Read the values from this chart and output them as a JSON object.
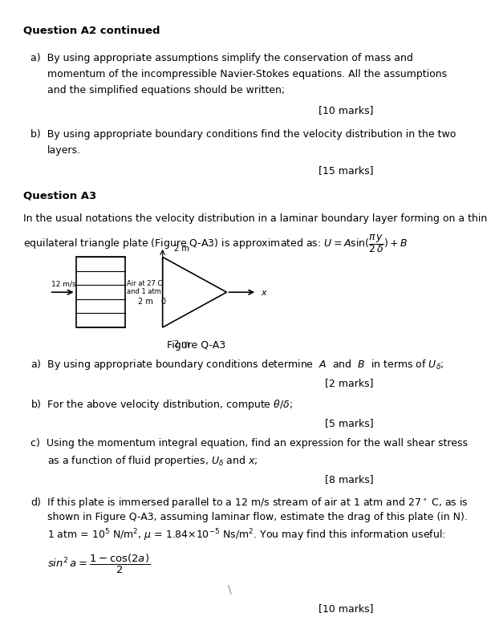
{
  "bg_color": "#ffffff",
  "fig_width": 6.01,
  "fig_height": 7.45,
  "title_bold": "Question A2 continued",
  "q_a2_a_text": "a)  By using appropriate assumptions simplify the conservation of mass and\n     momentum of the incompressible Navier-Stokes equations. All the assumptions\n     and the simplified equations should be written;",
  "q_a2_a_marks": "[10 marks]",
  "q_a2_b_text": "b)  By using appropriate boundary conditions find the velocity distribution in the two\n     layers.",
  "q_a2_b_marks": "[15 marks]",
  "q_a3_header": "Question A3",
  "q_a3_intro1": "In the usual notations the velocity distribution in a laminar boundary layer forming on a thin",
  "q_a3_intro2_pre": "equilateral triangle plate (Figure Q-A3) is approximated as: ",
  "q_a3_formula": "$U = A\\sin(\\dfrac{\\pi}{2}\\dfrac{y}{\\delta})+B$",
  "fig_caption": "Figure Q-A3",
  "q_a3_a_text": "a)  By using appropriate boundary conditions determine  $A$  and  $B$  in terms of $U_\\delta$;",
  "q_a3_a_marks": "[2 marks]",
  "q_a3_b_text": "b)  For the above velocity distribution, compute $\\theta/\\delta$;",
  "q_a3_b_marks": "[5 marks]",
  "q_a3_c_text": "c)  Using the momentum integral equation, find an expression for the wall shear stress\n     as a function of fluid properties, $U_\\delta$ and $x$;",
  "q_a3_c_marks": "[8 marks]",
  "q_a3_d_line1": "d)  If this plate is immersed parallel to a 12 m/s stream of air at 1 atm and 27$^\\circ$ C, as is",
  "q_a3_d_line2": "     shown in Figure Q-A3, assuming laminar flow, estimate the drag of this plate (in N).",
  "q_a3_d_line3": "     1 atm = $10^5$ N/m$^2$, $\\mu$ = 1.84×10$^{-5}$ Ns/m$^2$. You may find this information useful:",
  "q_a3_d_formula": "$sin^2\\, a = \\dfrac{1-\\cos(2a)}{2}$",
  "q_a3_d_marks": "[10 marks]"
}
